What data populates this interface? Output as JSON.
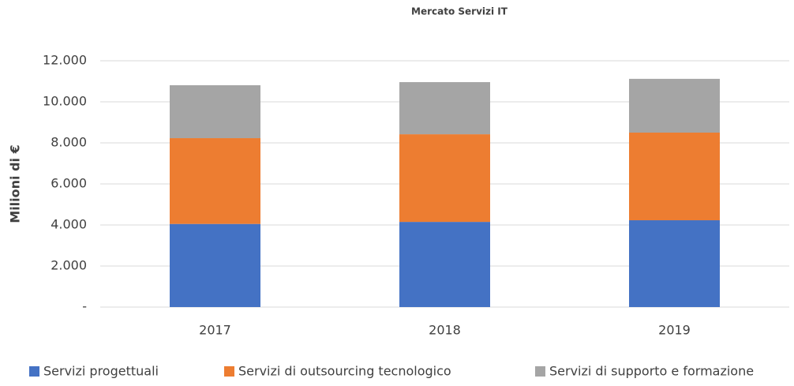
{
  "chart_data": {
    "type": "stacked_bar",
    "title": "Mercato Servizi IT",
    "y_label": "Milioni di €",
    "categories": [
      "2017",
      "2018",
      "2019"
    ],
    "series": [
      {
        "name": "Servizi progettuali",
        "color": "#4472c4",
        "values": [
          4050,
          4150,
          4230
        ]
      },
      {
        "name": "Servizi di outsourcing tecnologico",
        "color": "#ed7d31",
        "values": [
          4180,
          4270,
          4270
        ]
      },
      {
        "name": "Servizi di supporto e formazione",
        "color": "#a5a5a5",
        "values": [
          2580,
          2540,
          2620
        ]
      }
    ],
    "ylim": [
      0,
      12000
    ],
    "yticks": [
      {
        "value": 0,
        "label": "-"
      },
      {
        "value": 2000,
        "label": "2.000"
      },
      {
        "value": 4000,
        "label": "4.000"
      },
      {
        "value": 6000,
        "label": "6.000"
      },
      {
        "value": 8000,
        "label": "8.000"
      },
      {
        "value": 10000,
        "label": "10.000"
      },
      {
        "value": 12000,
        "label": "12.000"
      }
    ],
    "grid": true,
    "legend": "bottom"
  }
}
